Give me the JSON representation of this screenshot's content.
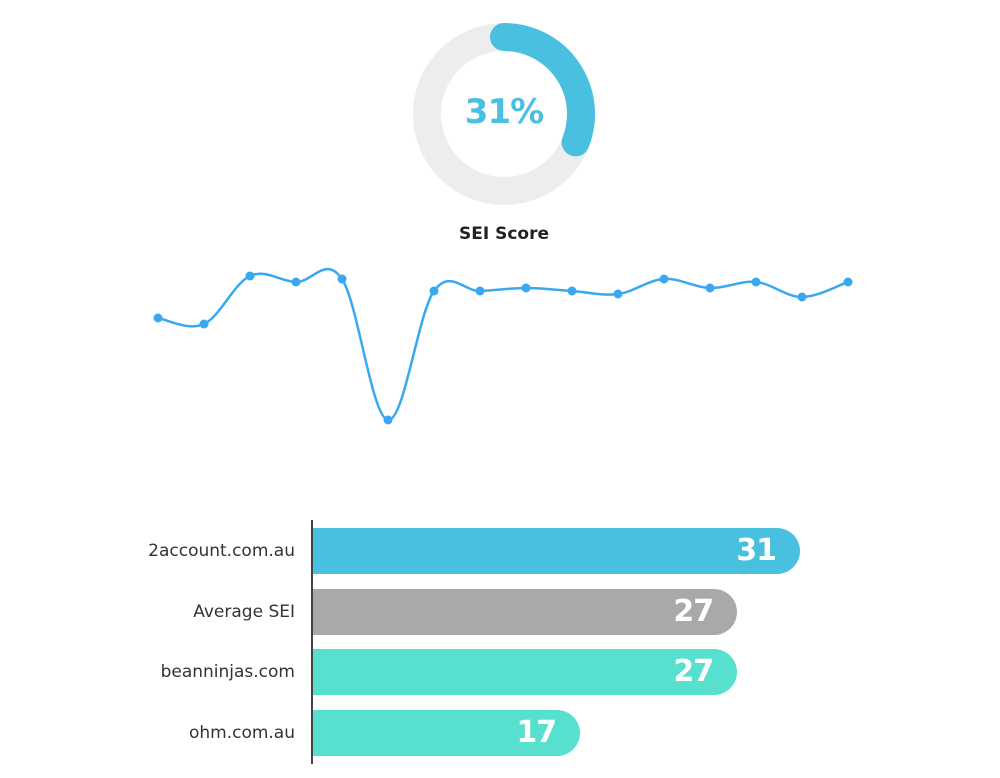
{
  "gauge": {
    "value_text": "31%",
    "value": 31,
    "label": "SEI Score",
    "accent_color": "#4AC0E0",
    "track_color": "#EDEDED"
  },
  "chart_data": [
    {
      "type": "line",
      "title": "",
      "xlabel": "",
      "ylabel": "",
      "color": "#3AA8F0",
      "values": [
        24,
        22,
        38,
        36,
        37,
        -10,
        33,
        33,
        34,
        33,
        32,
        37,
        34,
        36,
        31,
        36
      ],
      "ylim": [
        -12,
        42
      ]
    },
    {
      "type": "bar",
      "orientation": "horizontal",
      "categories": [
        "2account.com.au",
        "Average SEI",
        "beanninjas.com",
        "ohm.com.au"
      ],
      "values": [
        31,
        27,
        27,
        17
      ],
      "value_labels": [
        "31",
        "27",
        "27",
        "17"
      ],
      "colors": [
        "#4AC0E0",
        "#A9A9A9",
        "#57E0CE",
        "#57E0CE"
      ],
      "xlim": [
        0,
        31
      ]
    }
  ]
}
